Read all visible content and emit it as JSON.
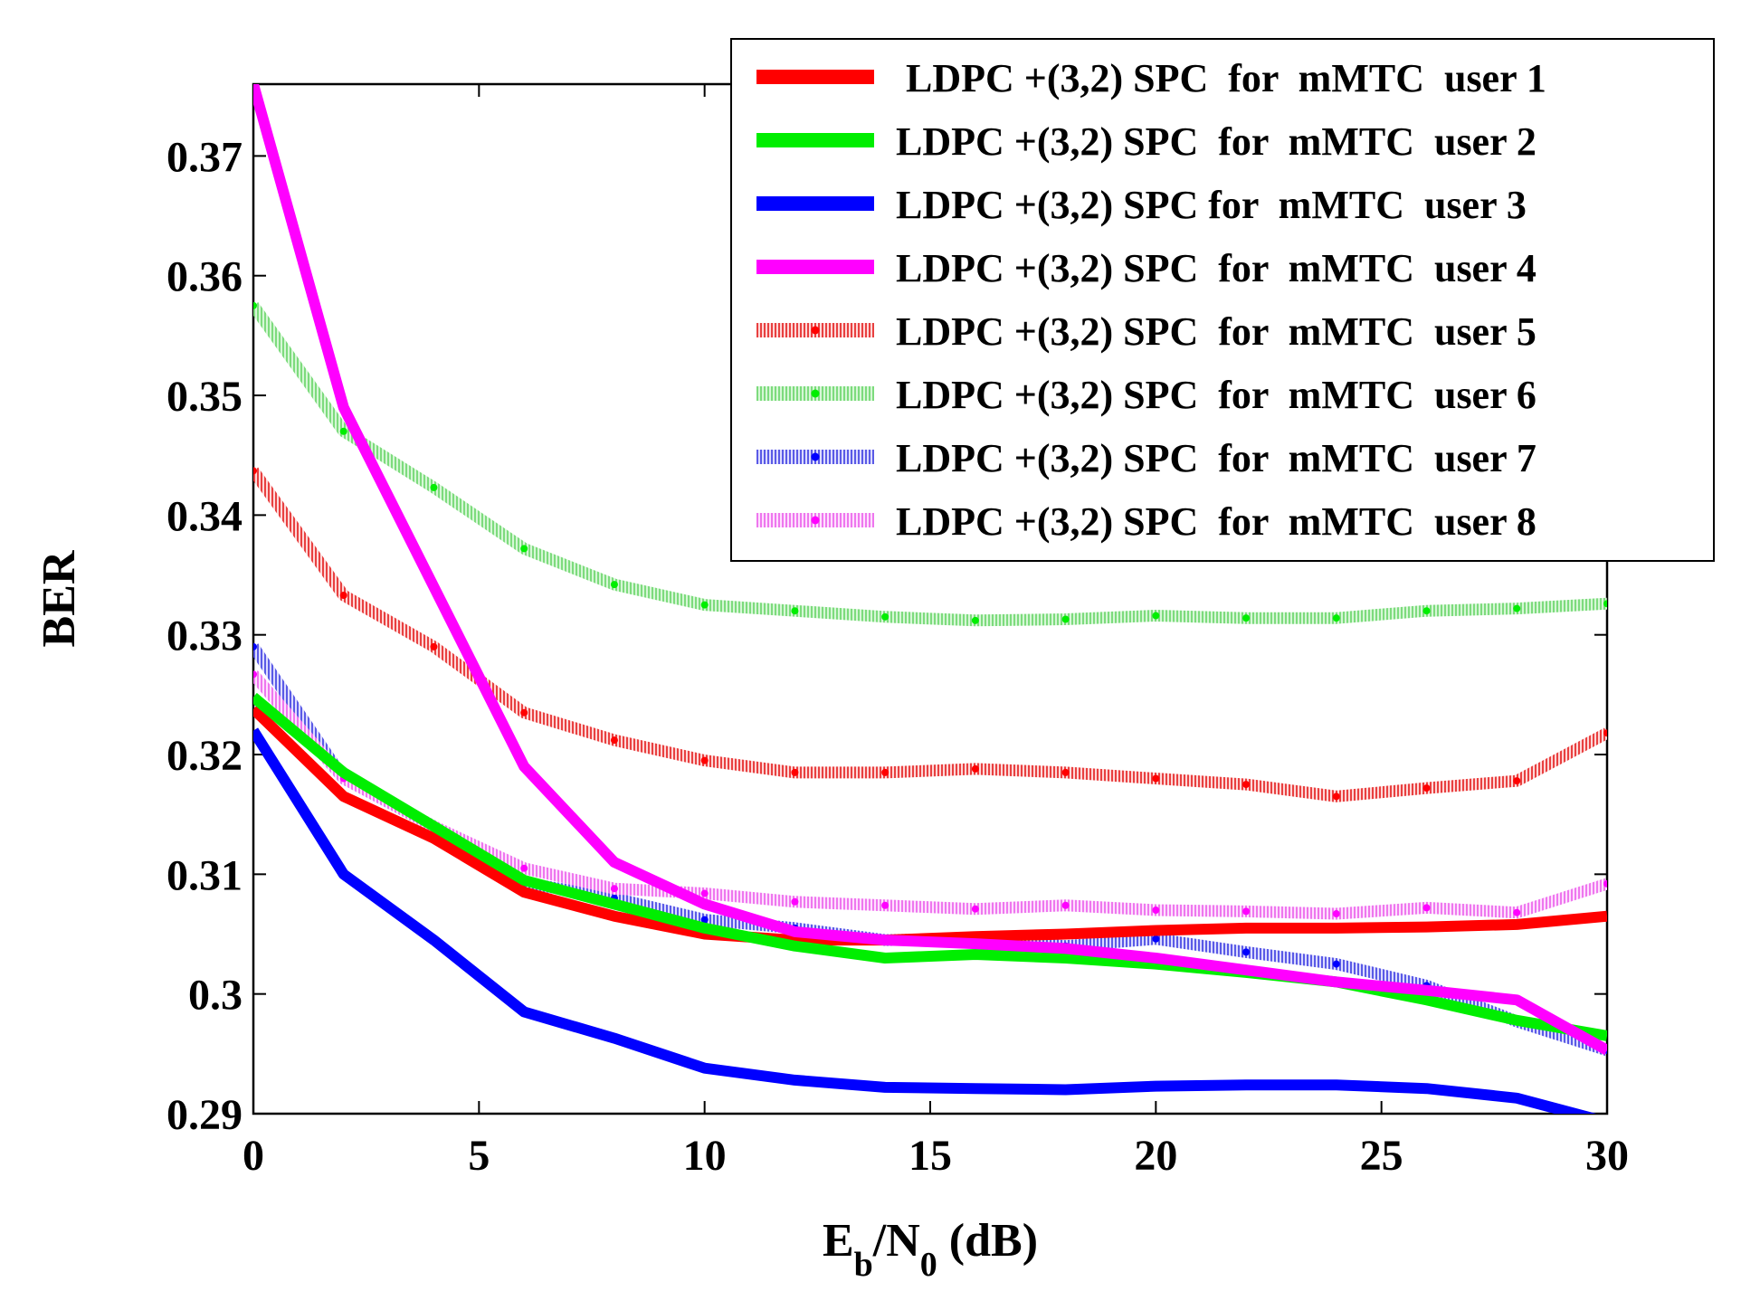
{
  "chart_data": {
    "type": "line",
    "title": "",
    "xlabel": "E_b/N_0 (dB)",
    "xlabel_parts": {
      "E": "E",
      "b": "b",
      "slash_N": "/N",
      "zero": "0",
      "unit": " (dB)"
    },
    "ylabel": "BER",
    "xlim": [
      0,
      30
    ],
    "ylim": [
      0.29,
      0.376
    ],
    "xticks": [
      0,
      5,
      10,
      15,
      20,
      25,
      30
    ],
    "xtick_labels": [
      "0",
      "5",
      "10",
      "15",
      "20",
      "25",
      "30"
    ],
    "yticks": [
      0.29,
      0.3,
      0.31,
      0.32,
      0.33,
      0.34,
      0.35,
      0.36,
      0.37
    ],
    "ytick_labels": [
      "0.29",
      "0.3",
      "0.31",
      "0.32",
      "0.33",
      "0.34",
      "0.35",
      "0.36",
      "0.37"
    ],
    "grid": false,
    "legend_position": "top-right",
    "x": [
      0,
      2,
      4,
      6,
      8,
      10,
      12,
      14,
      16,
      18,
      20,
      22,
      24,
      26,
      28,
      30
    ],
    "series": [
      {
        "name": " LDPC +(3,2) SPC  for  mMTC  user 1",
        "color": "#ff0000",
        "style": "solid",
        "values": [
          0.3238,
          0.3165,
          0.313,
          0.3085,
          0.3065,
          0.305,
          0.3045,
          0.3045,
          0.3048,
          0.305,
          0.3053,
          0.3055,
          0.3055,
          0.3056,
          0.3058,
          0.3065
        ]
      },
      {
        "name": "LDPC +(3,2) SPC  for  mMTC  user 2",
        "color": "#00ee00",
        "style": "solid",
        "values": [
          0.3248,
          0.3185,
          0.314,
          0.3095,
          0.3075,
          0.3055,
          0.304,
          0.303,
          0.3033,
          0.303,
          0.3025,
          0.3018,
          0.301,
          0.2995,
          0.2978,
          0.2965
        ]
      },
      {
        "name": "LDPC +(3,2) SPC for  mMTC  user 3",
        "color": "#0000ff",
        "style": "solid",
        "values": [
          0.322,
          0.31,
          0.3045,
          0.2985,
          0.2963,
          0.2938,
          0.2928,
          0.2922,
          0.2921,
          0.292,
          0.2923,
          0.2924,
          0.2924,
          0.2921,
          0.2913,
          0.2893
        ]
      },
      {
        "name": "LDPC +(3,2) SPC  for  mMTC  user 4",
        "color": "#ff00ff",
        "style": "solid",
        "values": [
          0.376,
          0.349,
          0.334,
          0.319,
          0.311,
          0.3075,
          0.3052,
          0.3045,
          0.3042,
          0.3038,
          0.303,
          0.302,
          0.301,
          0.3003,
          0.2995,
          0.2953
        ]
      },
      {
        "name": "LDPC +(3,2) SPC  for  mMTC  user 5",
        "color": "#ff0000",
        "style": "hatched",
        "values": [
          0.3437,
          0.3333,
          0.329,
          0.3235,
          0.3212,
          0.3195,
          0.3185,
          0.3185,
          0.3188,
          0.3185,
          0.318,
          0.3175,
          0.3165,
          0.3172,
          0.3178,
          0.3218
        ]
      },
      {
        "name": "LDPC +(3,2) SPC  for  mMTC  user 6",
        "color": "#00ee00",
        "style": "hatched",
        "values": [
          0.3575,
          0.347,
          0.3423,
          0.3372,
          0.3342,
          0.3325,
          0.332,
          0.3315,
          0.3312,
          0.3313,
          0.3316,
          0.3314,
          0.3314,
          0.332,
          0.3322,
          0.3326
        ]
      },
      {
        "name": "LDPC +(3,2) SPC  for  mMTC  user 7",
        "color": "#0000ff",
        "style": "hatched",
        "values": [
          0.329,
          0.318,
          0.314,
          0.3093,
          0.308,
          0.3062,
          0.3055,
          0.3045,
          0.3046,
          0.304,
          0.3046,
          0.3035,
          0.3025,
          0.3007,
          0.2977,
          0.2953
        ]
      },
      {
        "name": "LDPC +(3,2) SPC  for  mMTC  user 8",
        "color": "#ff00ff",
        "style": "hatched",
        "values": [
          0.3267,
          0.318,
          0.314,
          0.3105,
          0.3088,
          0.3084,
          0.3077,
          0.3074,
          0.3071,
          0.3074,
          0.307,
          0.3069,
          0.3067,
          0.3072,
          0.3068,
          0.3092
        ]
      }
    ]
  }
}
